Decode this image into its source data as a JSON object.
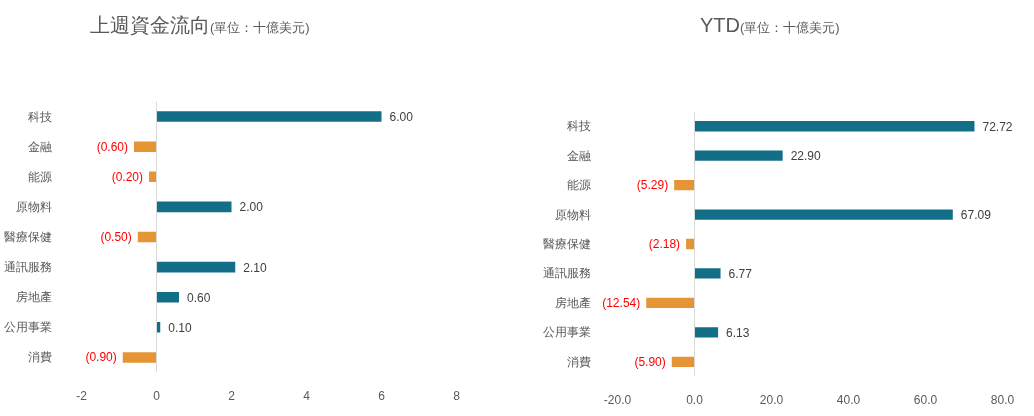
{
  "chart_data": [
    {
      "type": "bar",
      "orientation": "horizontal",
      "title": "上週資金流向",
      "subtitle": "(單位：十億美元)",
      "categories": [
        "科技",
        "金融",
        "能源",
        "原物料",
        "醫療保健",
        "通訊服務",
        "房地產",
        "公用事業",
        "消費"
      ],
      "values": [
        6.0,
        -0.6,
        -0.2,
        2.0,
        -0.5,
        2.1,
        0.6,
        0.1,
        -0.9
      ],
      "colors": [
        "#136f87",
        "#e59436",
        "#e59436",
        "#136f87",
        "#e59436",
        "#136f87",
        "#136f87",
        "#136f87",
        "#e59436"
      ],
      "value_labels": [
        "6.00",
        "(0.60)",
        "(0.20)",
        "2.00",
        "(0.50)",
        "2.10",
        "0.60",
        "0.10",
        "(0.90)"
      ],
      "xlim": [
        -2,
        8
      ],
      "xticks": [
        -2,
        0,
        2,
        4,
        6,
        8
      ]
    },
    {
      "type": "bar",
      "orientation": "horizontal",
      "title": "YTD",
      "subtitle": "(單位：十億美元)",
      "categories": [
        "科技",
        "金融",
        "能源",
        "原物料",
        "醫療保健",
        "通訊服務",
        "房地產",
        "公用事業",
        "消費"
      ],
      "values": [
        72.72,
        22.9,
        -5.29,
        67.09,
        -2.18,
        6.77,
        -12.54,
        6.13,
        -5.9
      ],
      "colors": [
        "#136f87",
        "#136f87",
        "#e59436",
        "#136f87",
        "#e59436",
        "#136f87",
        "#e59436",
        "#136f87",
        "#e59436"
      ],
      "value_labels": [
        "72.72",
        "22.90",
        "(5.29)",
        "67.09",
        "(2.18)",
        "6.77",
        "(12.54)",
        "6.13",
        "(5.90)"
      ],
      "xlim": [
        -20,
        80
      ],
      "xticks": [
        {
          "value": -20,
          "label": "-20.0"
        },
        {
          "value": 0,
          "label": "0.0"
        },
        {
          "value": 20,
          "label": "20.0"
        },
        {
          "value": 40,
          "label": "40.0"
        },
        {
          "value": 60,
          "label": "60.0"
        },
        {
          "value": 80,
          "label": "80.0"
        }
      ]
    }
  ]
}
